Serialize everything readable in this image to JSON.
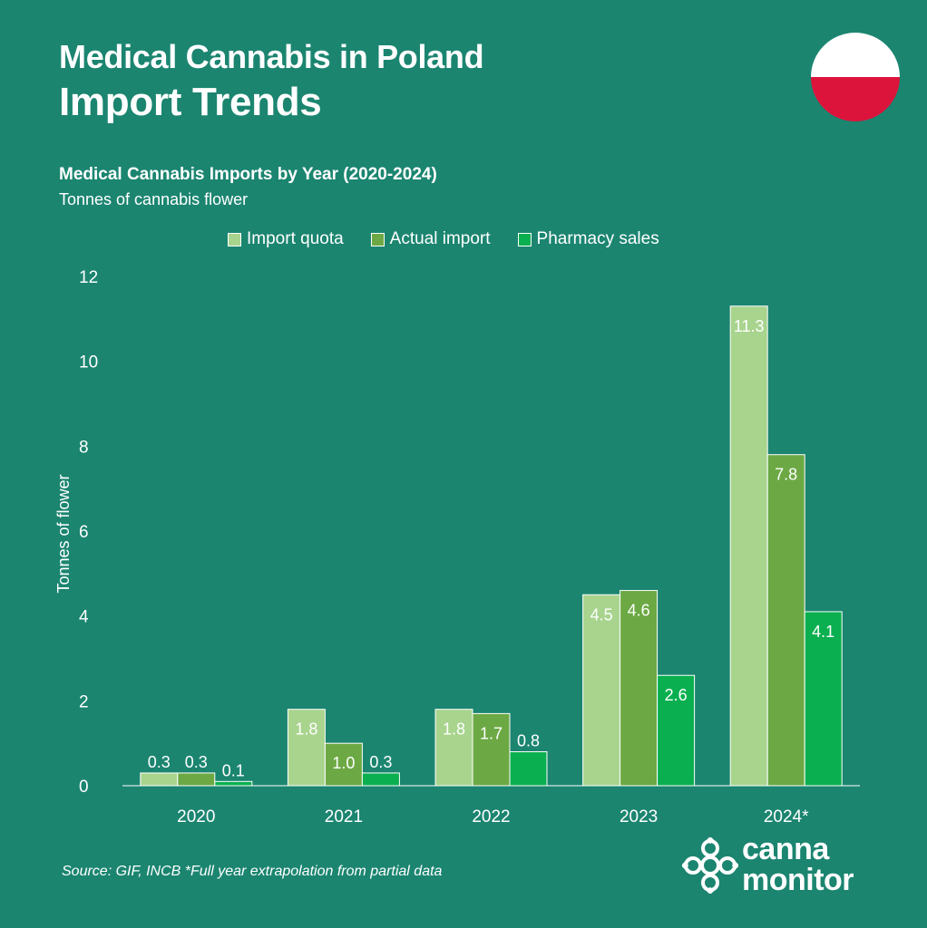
{
  "header": {
    "title": "Medical Cannabis in Poland",
    "subtitle": "Import Trends"
  },
  "flag": {
    "name": "poland-flag-icon",
    "colors": [
      "#ffffff",
      "#dc143c"
    ]
  },
  "chart_data": {
    "type": "bar",
    "title": "Medical Cannabis Imports by Year (2020-2024)",
    "subtitle": "Tonnes of cannabis flower",
    "ylabel": "Tonnes of flower",
    "xlabel": "",
    "categories": [
      "2020",
      "2021",
      "2022",
      "2023",
      "2024*"
    ],
    "ylim": [
      0,
      12
    ],
    "yticks": [
      0,
      2,
      4,
      6,
      8,
      10,
      12
    ],
    "grid": false,
    "legend_position": "top-center",
    "series": [
      {
        "name": "Import quota",
        "color": "#a8d48e",
        "values": [
          0.3,
          1.8,
          1.8,
          4.5,
          11.3
        ],
        "labels": [
          "0.3",
          "1.8",
          "1.8",
          "4.5",
          "11.3"
        ]
      },
      {
        "name": "Actual import",
        "color": "#6ca944",
        "values": [
          0.3,
          1.0,
          1.7,
          4.6,
          7.8
        ],
        "labels": [
          "0.3",
          "1.0",
          "1.7",
          "4.6",
          "7.8"
        ]
      },
      {
        "name": "Pharmacy sales",
        "color": "#0aaf4f",
        "values": [
          0.1,
          0.3,
          0.8,
          2.6,
          4.1
        ],
        "labels": [
          "0.1",
          "0.3",
          "0.8",
          "2.6",
          "4.1"
        ]
      }
    ]
  },
  "footer": {
    "source": "Source: GIF, INCB *Full year extrapolation from partial data"
  },
  "logo": {
    "line1": "canna",
    "line2": "monitor",
    "icon": "flower-logo-icon"
  },
  "colors": {
    "background": "#1b8570",
    "text": "#ffffff"
  }
}
